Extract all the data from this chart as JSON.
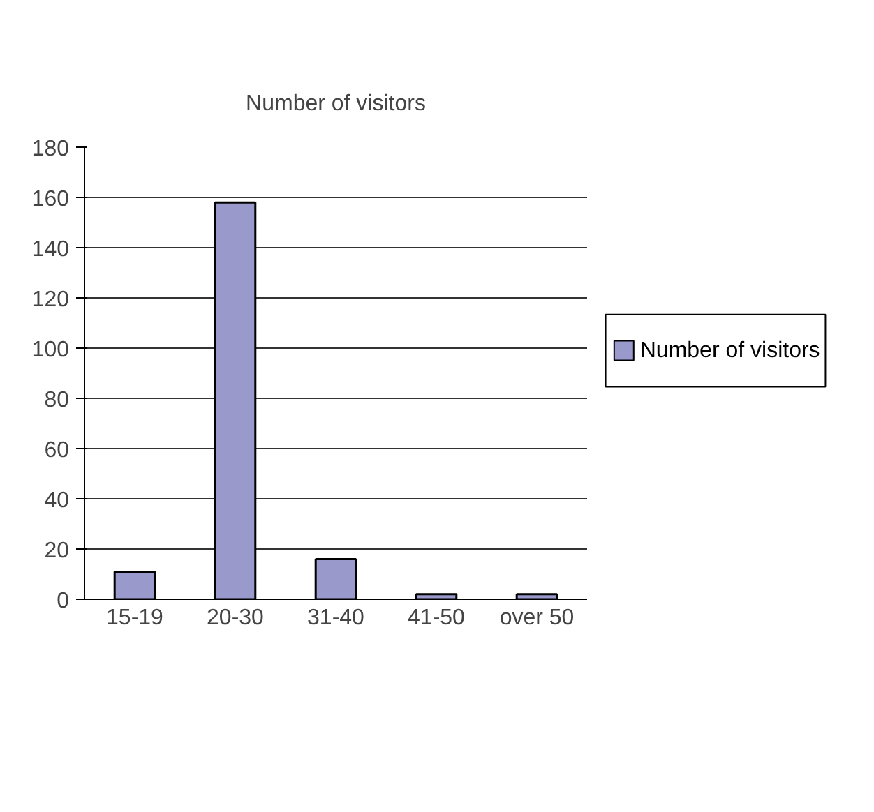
{
  "chart_data": {
    "type": "bar",
    "title": "Number of visitors",
    "categories": [
      "15-19",
      "20-30",
      "31-40",
      "41-50",
      "over 50"
    ],
    "series": [
      {
        "name": "Number of visitors",
        "color": "#9999cc",
        "values": [
          11,
          158,
          16,
          2,
          2
        ]
      }
    ],
    "ylim": [
      0,
      180
    ],
    "yticks": [
      0,
      20,
      40,
      60,
      80,
      100,
      120,
      140,
      160,
      180
    ],
    "grid": "y",
    "legend": "right"
  }
}
